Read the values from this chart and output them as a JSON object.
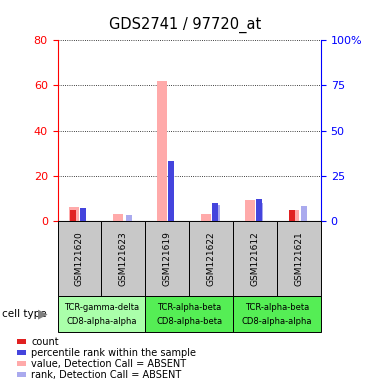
{
  "title": "GDS2741 / 97720_at",
  "samples": [
    "GSM121620",
    "GSM121623",
    "GSM121619",
    "GSM121622",
    "GSM121612",
    "GSM121621"
  ],
  "left_ylim": [
    0,
    80
  ],
  "left_yticks": [
    0,
    20,
    40,
    60,
    80
  ],
  "right_ylim": [
    0,
    100
  ],
  "right_yticks": [
    0,
    25,
    50,
    75,
    100
  ],
  "right_yticklabels": [
    "0",
    "25",
    "50",
    "75",
    "100%"
  ],
  "count_values": [
    5,
    0,
    0,
    0,
    0,
    5
  ],
  "rank_values": [
    7,
    0,
    33,
    10,
    12,
    0
  ],
  "absent_val_values": [
    6,
    3,
    62,
    3,
    9,
    5
  ],
  "absent_rank_values": [
    0,
    3,
    0,
    9,
    10,
    8
  ],
  "colors": {
    "count": "#e02020",
    "rank": "#4444dd",
    "absent_val": "#ffaaaa",
    "absent_rank": "#aaaaee",
    "bg_sample": "#c8c8c8",
    "bg_group_light": "#aaffaa",
    "bg_group_bright": "#55ee55"
  },
  "groups": [
    {
      "indices": [
        0,
        1
      ],
      "label1": "TCR-gamma-delta",
      "label2": "CD8-alpha-alpha",
      "color": "#aaffaa"
    },
    {
      "indices": [
        2,
        3
      ],
      "label1": "TCR-alpha-beta",
      "label2": "CD8-alpha-beta",
      "color": "#55ee55"
    },
    {
      "indices": [
        4,
        5
      ],
      "label1": "TCR-alpha-beta",
      "label2": "CD8-alpha-alpha",
      "color": "#55ee55"
    }
  ],
  "cell_type_label": "cell type",
  "legend_items": [
    {
      "color": "#e02020",
      "label": "count"
    },
    {
      "color": "#4444dd",
      "label": "percentile rank within the sample"
    },
    {
      "color": "#ffaaaa",
      "label": "value, Detection Call = ABSENT"
    },
    {
      "color": "#aaaaee",
      "label": "rank, Detection Call = ABSENT"
    }
  ]
}
